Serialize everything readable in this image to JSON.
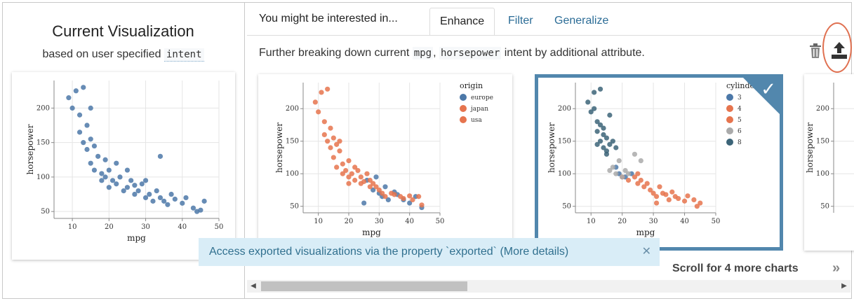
{
  "left_panel": {
    "title": "Current Visualization",
    "subtitle_prefix": "based on user specified",
    "subtitle_code": "intent"
  },
  "tabs": {
    "prompt": "You might be interested in...",
    "items": [
      {
        "label": "Enhance",
        "active": true
      },
      {
        "label": "Filter",
        "active": false
      },
      {
        "label": "Generalize",
        "active": false
      }
    ]
  },
  "description": {
    "prefix": "Further breaking down current",
    "attr1": "mpg",
    "sep": ",",
    "attr2": "horsepower",
    "suffix": "intent by additional attribute."
  },
  "icons": {
    "delete": "trash-icon",
    "export": "upload-icon",
    "selected": "checkmark-icon",
    "close": "close-icon",
    "more": "double-chevron-right-icon"
  },
  "colors": {
    "blue": "#4c78a8",
    "orange": "#e6744e",
    "grey": "#aaaaaa",
    "dark": "#3c6478",
    "accent": "#5287ad",
    "highlight_circle": "#e07050",
    "toast_bg": "#d9edf7"
  },
  "toast": {
    "text": "Access exported visualizations via the property `exported`",
    "link": "(More details)"
  },
  "scroll_hint": "Scroll for 4 more charts",
  "chart_data": [
    {
      "type": "scatter",
      "xlabel": "mpg",
      "ylabel": "horsepower",
      "xticks": [
        10,
        20,
        30,
        40,
        50
      ],
      "yticks": [
        50,
        100,
        150,
        200
      ],
      "xlim": [
        5,
        50
      ],
      "ylim": [
        40,
        240
      ],
      "series": [
        {
          "color": "#4c78a8",
          "points": [
            [
              9,
              215
            ],
            [
              10,
              200
            ],
            [
              11,
              225
            ],
            [
              12,
              190
            ],
            [
              12,
              165
            ],
            [
              13,
              230
            ],
            [
              13,
              150
            ],
            [
              14,
              175
            ],
            [
              14,
              140
            ],
            [
              15,
              155
            ],
            [
              15,
              120
            ],
            [
              16,
              145
            ],
            [
              16,
              110
            ],
            [
              17,
              130
            ],
            [
              18,
              105
            ],
            [
              18,
              95
            ],
            [
              19,
              100
            ],
            [
              20,
              85
            ],
            [
              20,
              110
            ],
            [
              21,
              95
            ],
            [
              22,
              90
            ],
            [
              23,
              100
            ],
            [
              24,
              80
            ],
            [
              25,
              85
            ],
            [
              26,
              95
            ],
            [
              27,
              75
            ],
            [
              28,
              80
            ],
            [
              29,
              90
            ],
            [
              30,
              70
            ],
            [
              31,
              75
            ],
            [
              32,
              65
            ],
            [
              33,
              80
            ],
            [
              34,
              70
            ],
            [
              35,
              65
            ],
            [
              36,
              60
            ],
            [
              37,
              75
            ],
            [
              38,
              68
            ],
            [
              40,
              62
            ],
            [
              41,
              70
            ],
            [
              43,
              55
            ],
            [
              44,
              50
            ],
            [
              45,
              52
            ],
            [
              46,
              65
            ],
            [
              34,
              130
            ],
            [
              25,
              110
            ],
            [
              22,
              120
            ],
            [
              30,
              95
            ],
            [
              27,
              88
            ],
            [
              19,
              125
            ],
            [
              15,
              200
            ]
          ]
        }
      ]
    },
    {
      "type": "scatter",
      "legend_title": "origin",
      "legend": [
        "europe",
        "japan",
        "usa"
      ],
      "xlabel": "mpg",
      "ylabel": "horsepower",
      "xticks": [
        10,
        20,
        30,
        40,
        50
      ],
      "yticks": [
        50,
        100,
        150,
        200
      ],
      "xlim": [
        5,
        50
      ],
      "ylim": [
        40,
        240
      ],
      "series": [
        {
          "name": "europe",
          "color": "#4c78a8",
          "points": [
            [
              26,
              90
            ],
            [
              28,
              75
            ],
            [
              30,
              70
            ],
            [
              31,
              65
            ],
            [
              32,
              80
            ],
            [
              33,
              60
            ],
            [
              35,
              72
            ],
            [
              36,
              68
            ],
            [
              38,
              60
            ],
            [
              40,
              55
            ],
            [
              42,
              65
            ],
            [
              44,
              48
            ],
            [
              29,
              95
            ],
            [
              25,
              55
            ]
          ]
        },
        {
          "name": "japan",
          "color": "#e6744e",
          "points": [
            [
              24,
              95
            ],
            [
              27,
              90
            ],
            [
              29,
              80
            ],
            [
              31,
              70
            ],
            [
              32,
              65
            ],
            [
              34,
              70
            ],
            [
              35,
              68
            ],
            [
              37,
              65
            ],
            [
              38,
              62
            ],
            [
              40,
              66
            ],
            [
              41,
              60
            ],
            [
              43,
              65
            ],
            [
              44,
              52
            ],
            [
              30,
              75
            ]
          ]
        },
        {
          "name": "usa",
          "color": "#e6744e",
          "points": [
            [
              9,
              210
            ],
            [
              10,
              195
            ],
            [
              11,
              225
            ],
            [
              12,
              180
            ],
            [
              12,
              160
            ],
            [
              13,
              230
            ],
            [
              13,
              150
            ],
            [
              14,
              170
            ],
            [
              14,
              140
            ],
            [
              15,
              155
            ],
            [
              15,
              125
            ],
            [
              16,
              145
            ],
            [
              16,
              110
            ],
            [
              17,
              135
            ],
            [
              18,
              100
            ],
            [
              18,
              115
            ],
            [
              19,
              105
            ],
            [
              20,
              95
            ],
            [
              20,
              120
            ],
            [
              21,
              100
            ],
            [
              22,
              90
            ],
            [
              23,
              105
            ],
            [
              24,
              85
            ],
            [
              25,
              88
            ],
            [
              26,
              100
            ],
            [
              27,
              80
            ],
            [
              28,
              85
            ],
            [
              20,
              85
            ],
            [
              17,
              150
            ],
            [
              22,
              110
            ]
          ]
        }
      ]
    },
    {
      "type": "scatter",
      "legend_title": "cylinders",
      "legend": [
        "3",
        "4",
        "5",
        "6",
        "8"
      ],
      "xlabel": "mpg",
      "ylabel": "horsepower",
      "xticks": [
        10,
        20,
        30,
        40,
        50
      ],
      "yticks": [
        50,
        100,
        150,
        200
      ],
      "xlim": [
        5,
        50
      ],
      "ylim": [
        40,
        240
      ],
      "series": [
        {
          "name": "3",
          "color": "#4c78a8",
          "points": [
            [
              18,
              110
            ],
            [
              19,
              100
            ],
            [
              21,
              95
            ],
            [
              23,
              100
            ]
          ]
        },
        {
          "name": "4",
          "color": "#e6744e",
          "points": [
            [
              24,
              95
            ],
            [
              26,
              90
            ],
            [
              27,
              80
            ],
            [
              28,
              85
            ],
            [
              29,
              75
            ],
            [
              30,
              70
            ],
            [
              31,
              65
            ],
            [
              32,
              80
            ],
            [
              33,
              70
            ],
            [
              34,
              68
            ],
            [
              35,
              60
            ],
            [
              36,
              72
            ],
            [
              37,
              65
            ],
            [
              38,
              62
            ],
            [
              40,
              58
            ],
            [
              41,
              66
            ],
            [
              43,
              60
            ],
            [
              44,
              50
            ],
            [
              45,
              55
            ],
            [
              25,
              100
            ],
            [
              22,
              90
            ],
            [
              31,
              55
            ]
          ]
        },
        {
          "name": "5",
          "color": "#e6744e",
          "points": [
            [
              20,
              95
            ],
            [
              25,
              85
            ]
          ]
        },
        {
          "name": "6",
          "color": "#aaaaaa",
          "points": [
            [
              17,
              110
            ],
            [
              18,
              100
            ],
            [
              19,
              120
            ],
            [
              20,
              95
            ],
            [
              21,
              105
            ],
            [
              22,
              100
            ],
            [
              24,
              130
            ],
            [
              26,
              120
            ],
            [
              16,
              105
            ]
          ]
        },
        {
          "name": "8",
          "color": "#3c6478",
          "points": [
            [
              9,
              210
            ],
            [
              10,
              195
            ],
            [
              11,
              225
            ],
            [
              12,
              180
            ],
            [
              12,
              165
            ],
            [
              13,
              230
            ],
            [
              13,
              150
            ],
            [
              14,
              170
            ],
            [
              14,
              140
            ],
            [
              15,
              155
            ],
            [
              15,
              130
            ],
            [
              16,
              145
            ],
            [
              17,
              150
            ],
            [
              16,
              190
            ],
            [
              14,
              160
            ],
            [
              13,
              175
            ],
            [
              12,
              145
            ],
            [
              15,
              135
            ],
            [
              18,
              140
            ],
            [
              11,
              200
            ]
          ]
        }
      ]
    },
    {
      "type": "scatter",
      "ylabel": "horsepower",
      "yticks": [
        50,
        100,
        150,
        200
      ],
      "ylim": [
        40,
        240
      ],
      "series": []
    }
  ]
}
